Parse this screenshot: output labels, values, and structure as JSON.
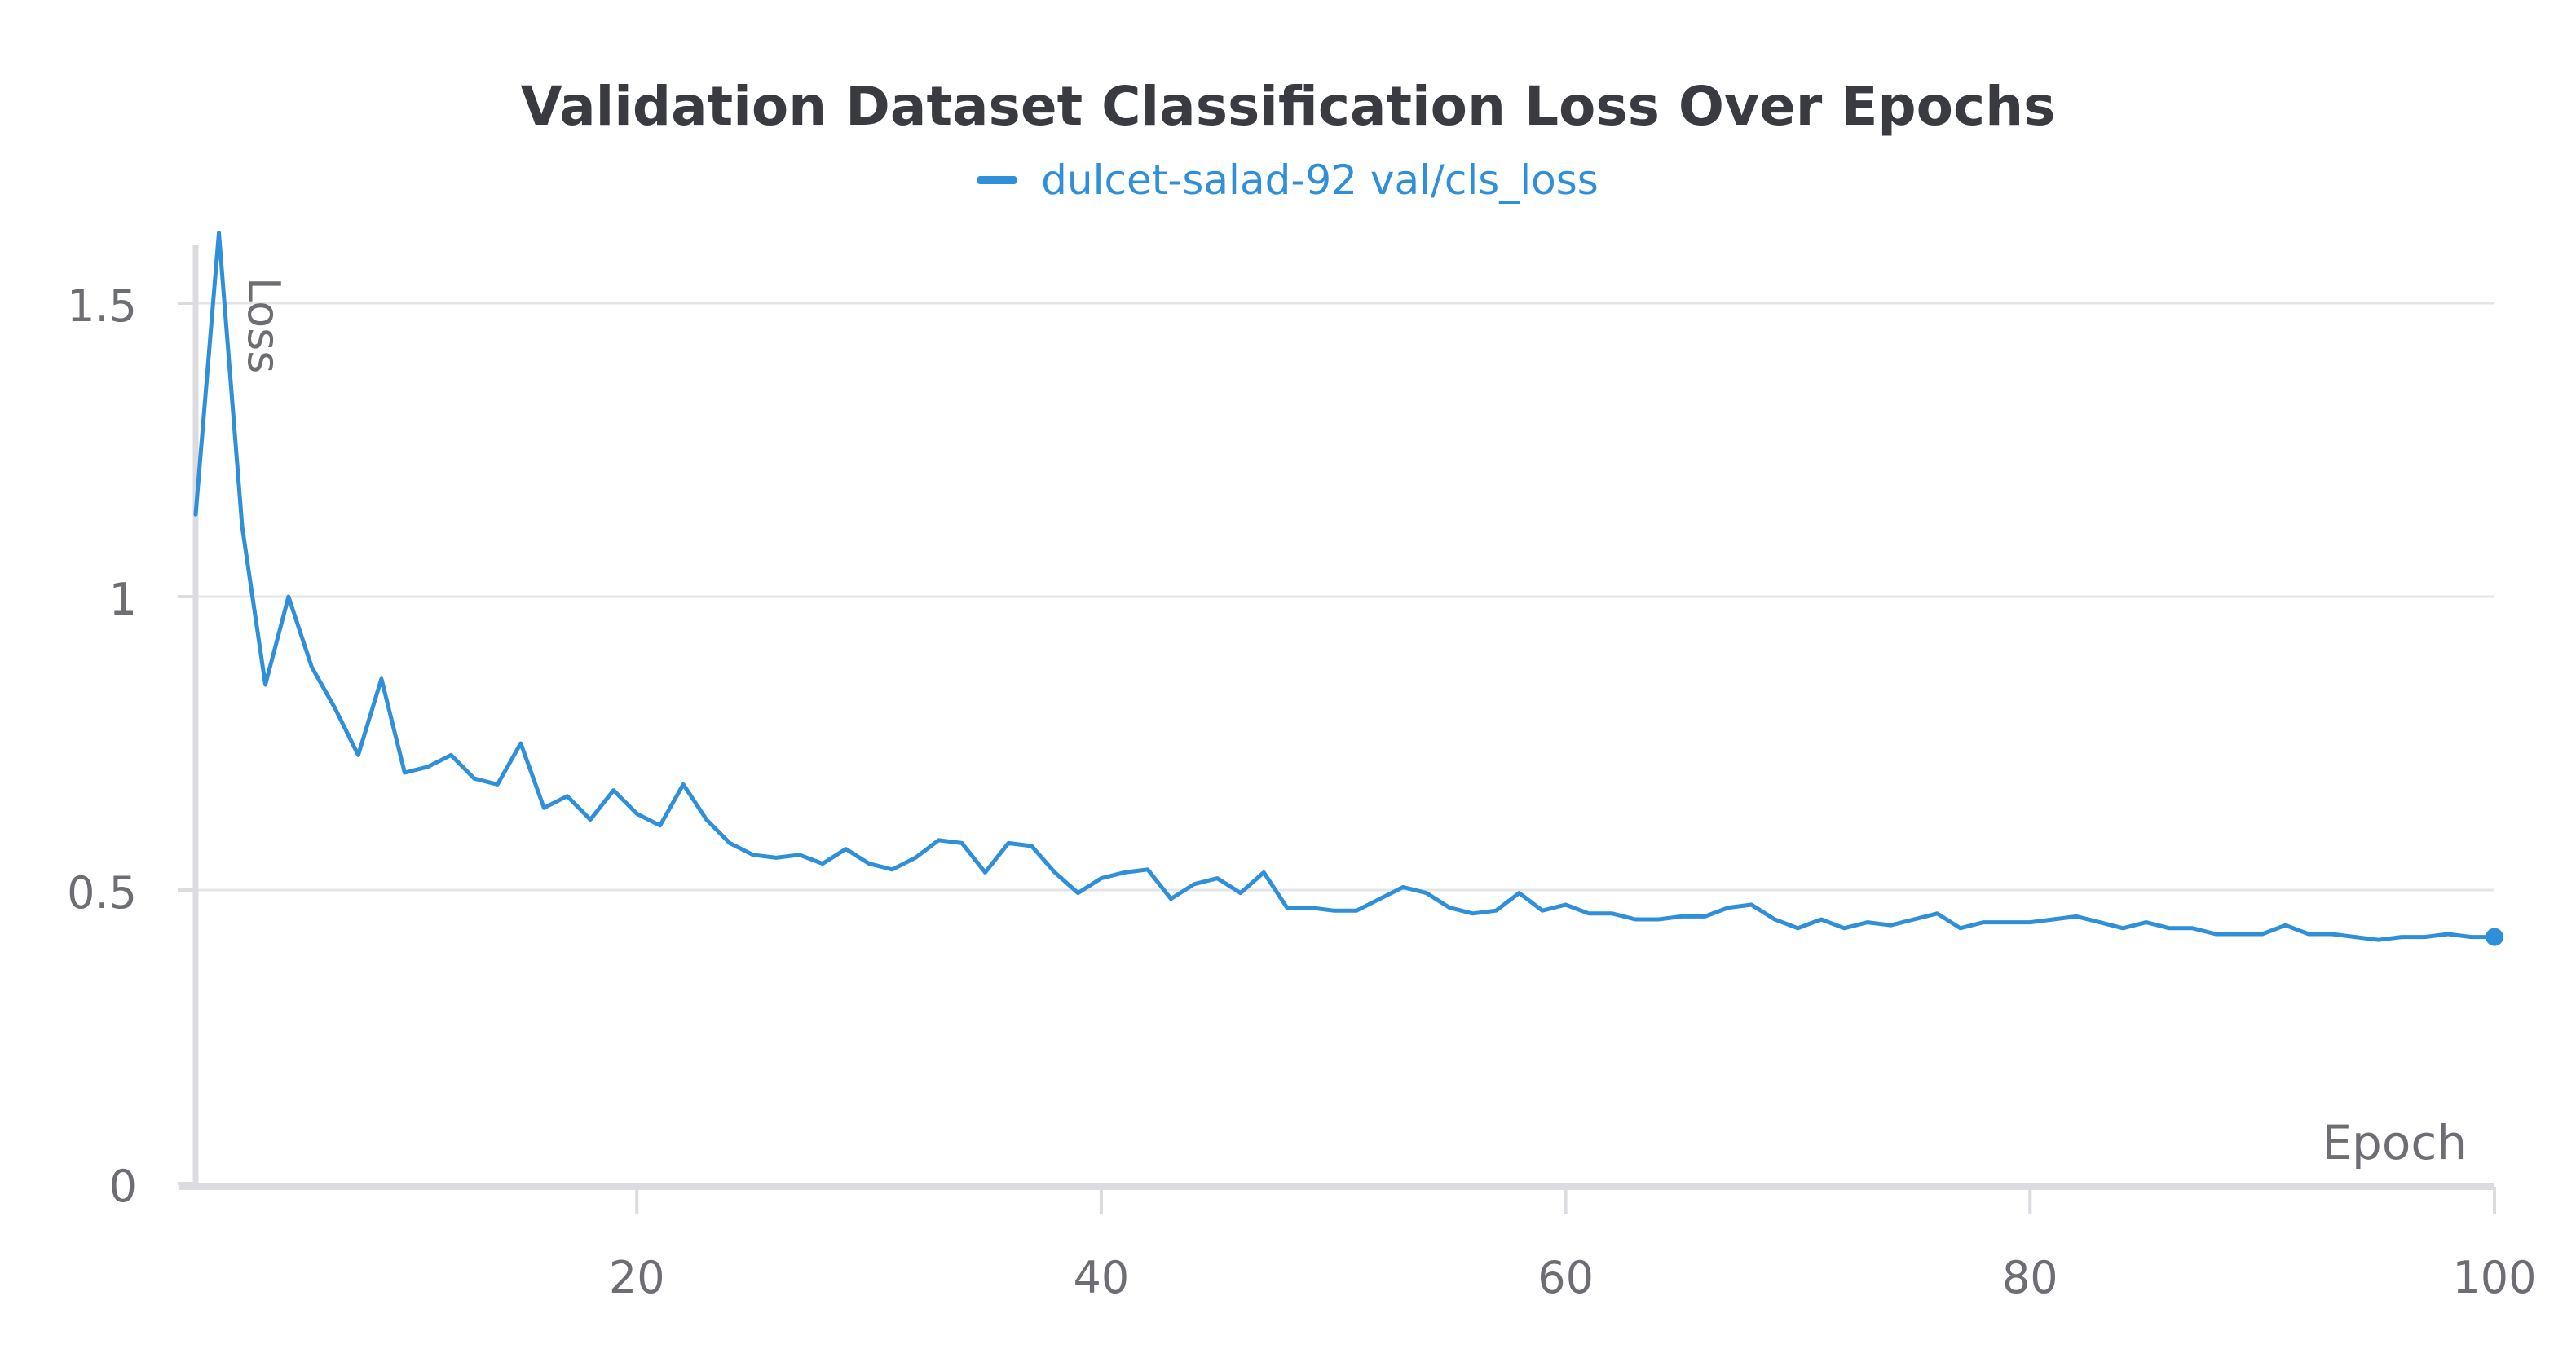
{
  "colors": {
    "series": "#2f8fd8",
    "grid": "#e4e4e8",
    "axis": "#dcdce0",
    "text": "#6d6d74",
    "title": "#3a3b40"
  },
  "chart_data": {
    "type": "line",
    "title": "Validation Dataset Classification Loss Over Epochs",
    "xlabel": "Epoch",
    "ylabel": "Loss",
    "xlim": [
      1,
      100
    ],
    "ylim": [
      0,
      1.6
    ],
    "x_ticks": [
      20,
      40,
      60,
      80,
      100
    ],
    "x_tick_labels": [
      "20",
      "40",
      "60",
      "80",
      "100"
    ],
    "y_ticks": [
      0,
      0.5,
      1,
      1.5
    ],
    "y_tick_labels": [
      "0",
      "0.5",
      "1",
      "1.5"
    ],
    "grid": true,
    "legend": "top-center",
    "series": [
      {
        "name": "dulcet-salad-92 val/cls_loss",
        "x": [
          1,
          2,
          3,
          4,
          5,
          6,
          7,
          8,
          9,
          10,
          11,
          12,
          13,
          14,
          15,
          16,
          17,
          18,
          19,
          20,
          21,
          22,
          23,
          24,
          25,
          26,
          27,
          28,
          29,
          30,
          31,
          32,
          33,
          34,
          35,
          36,
          37,
          38,
          39,
          40,
          41,
          42,
          43,
          44,
          45,
          46,
          47,
          48,
          49,
          50,
          51,
          52,
          53,
          54,
          55,
          56,
          57,
          58,
          59,
          60,
          61,
          62,
          63,
          64,
          65,
          66,
          67,
          68,
          69,
          70,
          71,
          72,
          73,
          74,
          75,
          76,
          77,
          78,
          79,
          80,
          81,
          82,
          83,
          84,
          85,
          86,
          87,
          88,
          89,
          90,
          91,
          92,
          93,
          94,
          95,
          96,
          97,
          98,
          99,
          100
        ],
        "values": [
          1.14,
          1.62,
          1.12,
          0.85,
          1.0,
          0.88,
          0.81,
          0.73,
          0.86,
          0.7,
          0.71,
          0.73,
          0.69,
          0.68,
          0.75,
          0.64,
          0.66,
          0.62,
          0.67,
          0.63,
          0.61,
          0.68,
          0.62,
          0.58,
          0.56,
          0.555,
          0.56,
          0.545,
          0.57,
          0.545,
          0.535,
          0.555,
          0.585,
          0.58,
          0.53,
          0.58,
          0.575,
          0.53,
          0.495,
          0.52,
          0.53,
          0.535,
          0.485,
          0.51,
          0.52,
          0.495,
          0.53,
          0.47,
          0.47,
          0.465,
          0.465,
          0.485,
          0.505,
          0.495,
          0.47,
          0.46,
          0.465,
          0.495,
          0.465,
          0.475,
          0.46,
          0.46,
          0.45,
          0.45,
          0.455,
          0.455,
          0.47,
          0.475,
          0.45,
          0.435,
          0.45,
          0.435,
          0.445,
          0.44,
          0.45,
          0.46,
          0.435,
          0.445,
          0.445,
          0.445,
          0.45,
          0.455,
          0.445,
          0.435,
          0.445,
          0.435,
          0.435,
          0.425,
          0.425,
          0.425,
          0.44,
          0.425,
          0.425,
          0.42,
          0.415,
          0.42,
          0.42,
          0.425,
          0.42,
          0.42
        ]
      }
    ]
  }
}
